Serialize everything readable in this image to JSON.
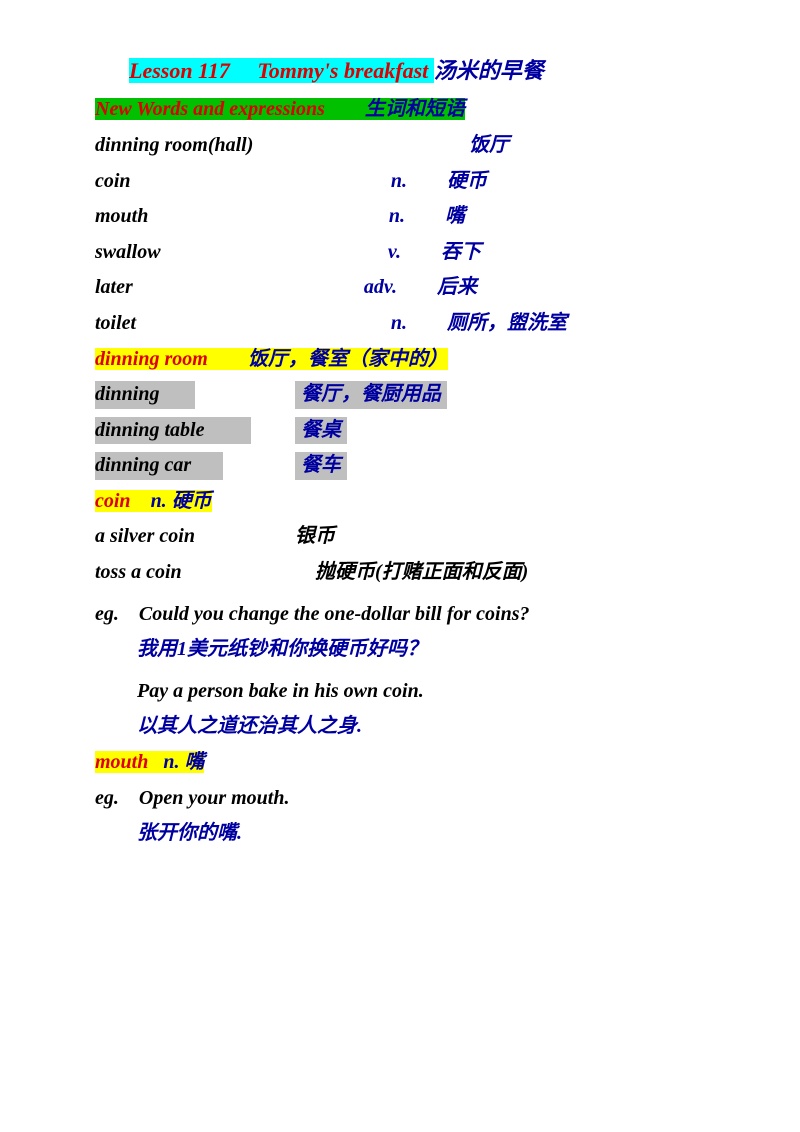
{
  "colors": {
    "red": "#dc0000",
    "blue": "#0000a0",
    "black": "#000000",
    "hl_cyan": "#00ffff",
    "hl_green": "#00c000",
    "hl_yellow": "#ffff00",
    "hl_gray": "#bfbfbf",
    "background": "#ffffff"
  },
  "typography": {
    "font_family": "Georgia, Times New Roman, serif",
    "font_style": "italic",
    "font_weight": "bold",
    "base_size": 20,
    "title_size": 22
  },
  "title": {
    "lesson": "Lesson 117",
    "tab": "     ",
    "name": "Tommy's breakfast  ",
    "cn": "汤米的早餐"
  },
  "header": {
    "en": "New Words and expressions",
    "gap": "        ",
    "cn": "生词和短语"
  },
  "vocab": [
    {
      "en": "dinning room(hall)",
      "pos": "",
      "cn": "饭厅",
      "w1": 290,
      "w2": 44,
      "w3": 150
    },
    {
      "en": "coin",
      "pos": "n.",
      "cn": "硬币",
      "w1": 258,
      "w2": 54,
      "w3": 150
    },
    {
      "en": "mouth",
      "pos": "n.",
      "cn": "嘴",
      "w1": 260,
      "w2": 50,
      "w3": 150
    },
    {
      "en": "swallow",
      "pos": "v.",
      "cn": "吞下",
      "w1": 248,
      "w2": 58,
      "w3": 150
    },
    {
      "en": "later",
      "pos": "adv.",
      "cn": "后来",
      "w1": 226,
      "w2": 76,
      "w3": 150
    },
    {
      "en": "toilet",
      "pos": "n.",
      "cn": "厕所，盥洗室",
      "w1": 258,
      "w2": 54,
      "w3": 200
    }
  ],
  "dinning_head": {
    "en": "dinning room",
    "gap": "        ",
    "cn": "饭厅，餐室（家中的）"
  },
  "dinning": [
    {
      "en": "dinning",
      "cn": "餐厅，餐厨用品",
      "w1": 100,
      "gap": 100
    },
    {
      "en": "dinning table",
      "cn": "餐桌",
      "w1": 156,
      "gap": 44
    },
    {
      "en": "dinning car",
      "cn": "餐车",
      "w1": 128,
      "gap": 72
    }
  ],
  "coin_head": {
    "en": "coin",
    "gap": "    ",
    "pos": "n.",
    "sp": " ",
    "cn": "硬币"
  },
  "coin": [
    {
      "en": "a silver coin",
      "cn": "银币",
      "gap": 70
    },
    {
      "en": "toss a coin",
      "cn": "抛硬币(打赌正面和反面)",
      "gap": 90
    }
  ],
  "eg1": {
    "label": "eg.",
    "sp": "    ",
    "en": "Could you change the one-dollar bill for coins?",
    "cn": "我用1美元纸钞和你换硬币好吗？"
  },
  "eg2": {
    "en": "Pay a person bake in his own coin.",
    "cn": "以其人之道还治其人之身."
  },
  "mouth_head": {
    "en": "mouth",
    "gap": "   ",
    "pos": "n.",
    "sp": " ",
    "cn": "嘴"
  },
  "eg3": {
    "label": "eg.",
    "sp": "    ",
    "en": "Open your mouth.",
    "cn": "张开你的嘴."
  }
}
